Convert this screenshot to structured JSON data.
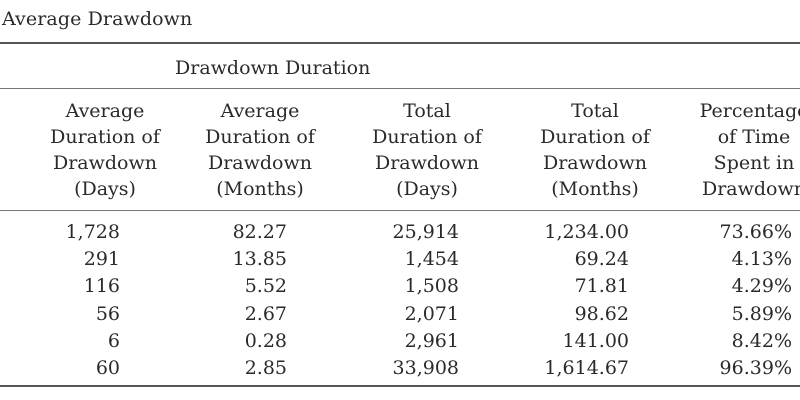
{
  "caption": "s Average Drawdown",
  "group_heading": "Drawdown Duration",
  "columns": [
    {
      "line1": "Average",
      "line2": "Duration of",
      "line3": "Drawdown",
      "line4": "(Days)"
    },
    {
      "line1": "Average",
      "line2": "Duration of",
      "line3": "Drawdown",
      "line4": "(Months)"
    },
    {
      "line1": "Total",
      "line2": "Duration of",
      "line3": "Drawdown",
      "line4": "(Days)"
    },
    {
      "line1": "Total",
      "line2": "Duration of",
      "line3": "Drawdown",
      "line4": "(Months)"
    },
    {
      "line1": "Percentage",
      "line2": "of Time",
      "line3": "Spent in",
      "line4": "Drawdown"
    }
  ],
  "rows": [
    [
      "1,728",
      "82.27",
      "25,914",
      "1,234.00",
      "73.66%"
    ],
    [
      "291",
      "13.85",
      "1,454",
      "69.24",
      "4.13%"
    ],
    [
      "116",
      "5.52",
      "1,508",
      "71.81",
      "4.29%"
    ],
    [
      "56",
      "2.67",
      "2,071",
      "98.62",
      "5.89%"
    ],
    [
      "6",
      "0.28",
      "2,961",
      "141.00",
      "8.42%"
    ],
    [
      "60",
      "2.85",
      "33,908",
      "1,614.67",
      "96.39%"
    ]
  ]
}
